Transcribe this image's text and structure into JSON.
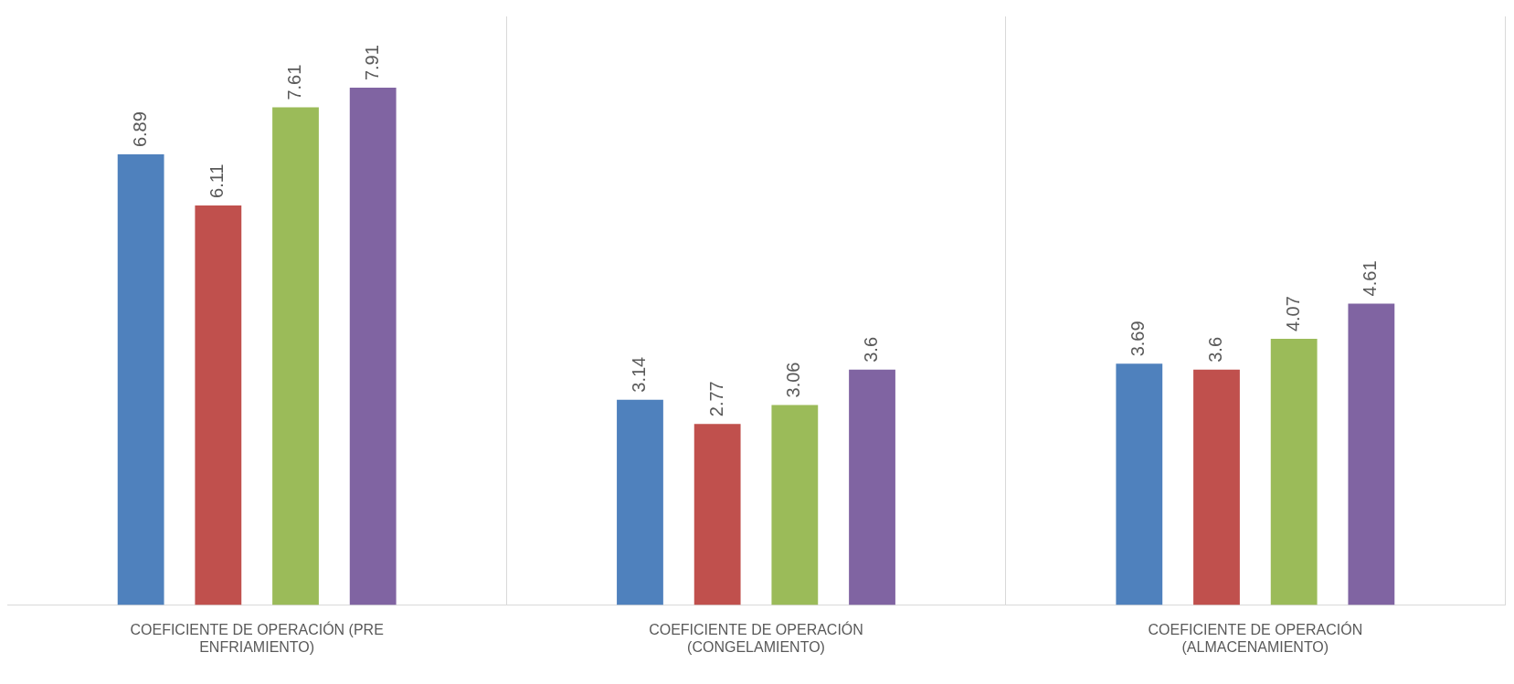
{
  "chart_data": {
    "type": "bar",
    "categories": [
      "COEFICIENTE DE OPERACIÓN (PRE ENFRIAMIENTO)",
      "COEFICIENTE DE OPERACIÓN (CONGELAMIENTO)",
      "COEFICIENTE DE OPERACIÓN (ALMACENAMIENTO)"
    ],
    "series": [
      {
        "color": "#4f81bd",
        "values": [
          6.89,
          3.14,
          3.69
        ]
      },
      {
        "color": "#c0504d",
        "values": [
          6.11,
          2.77,
          3.6
        ]
      },
      {
        "color": "#9bbb59",
        "values": [
          7.61,
          3.06,
          4.07
        ]
      },
      {
        "color": "#8064a2",
        "values": [
          7.91,
          3.6,
          4.61
        ]
      }
    ],
    "ylim": [
      0,
      9
    ],
    "grid": "x",
    "legend": false,
    "data_labels": true
  }
}
